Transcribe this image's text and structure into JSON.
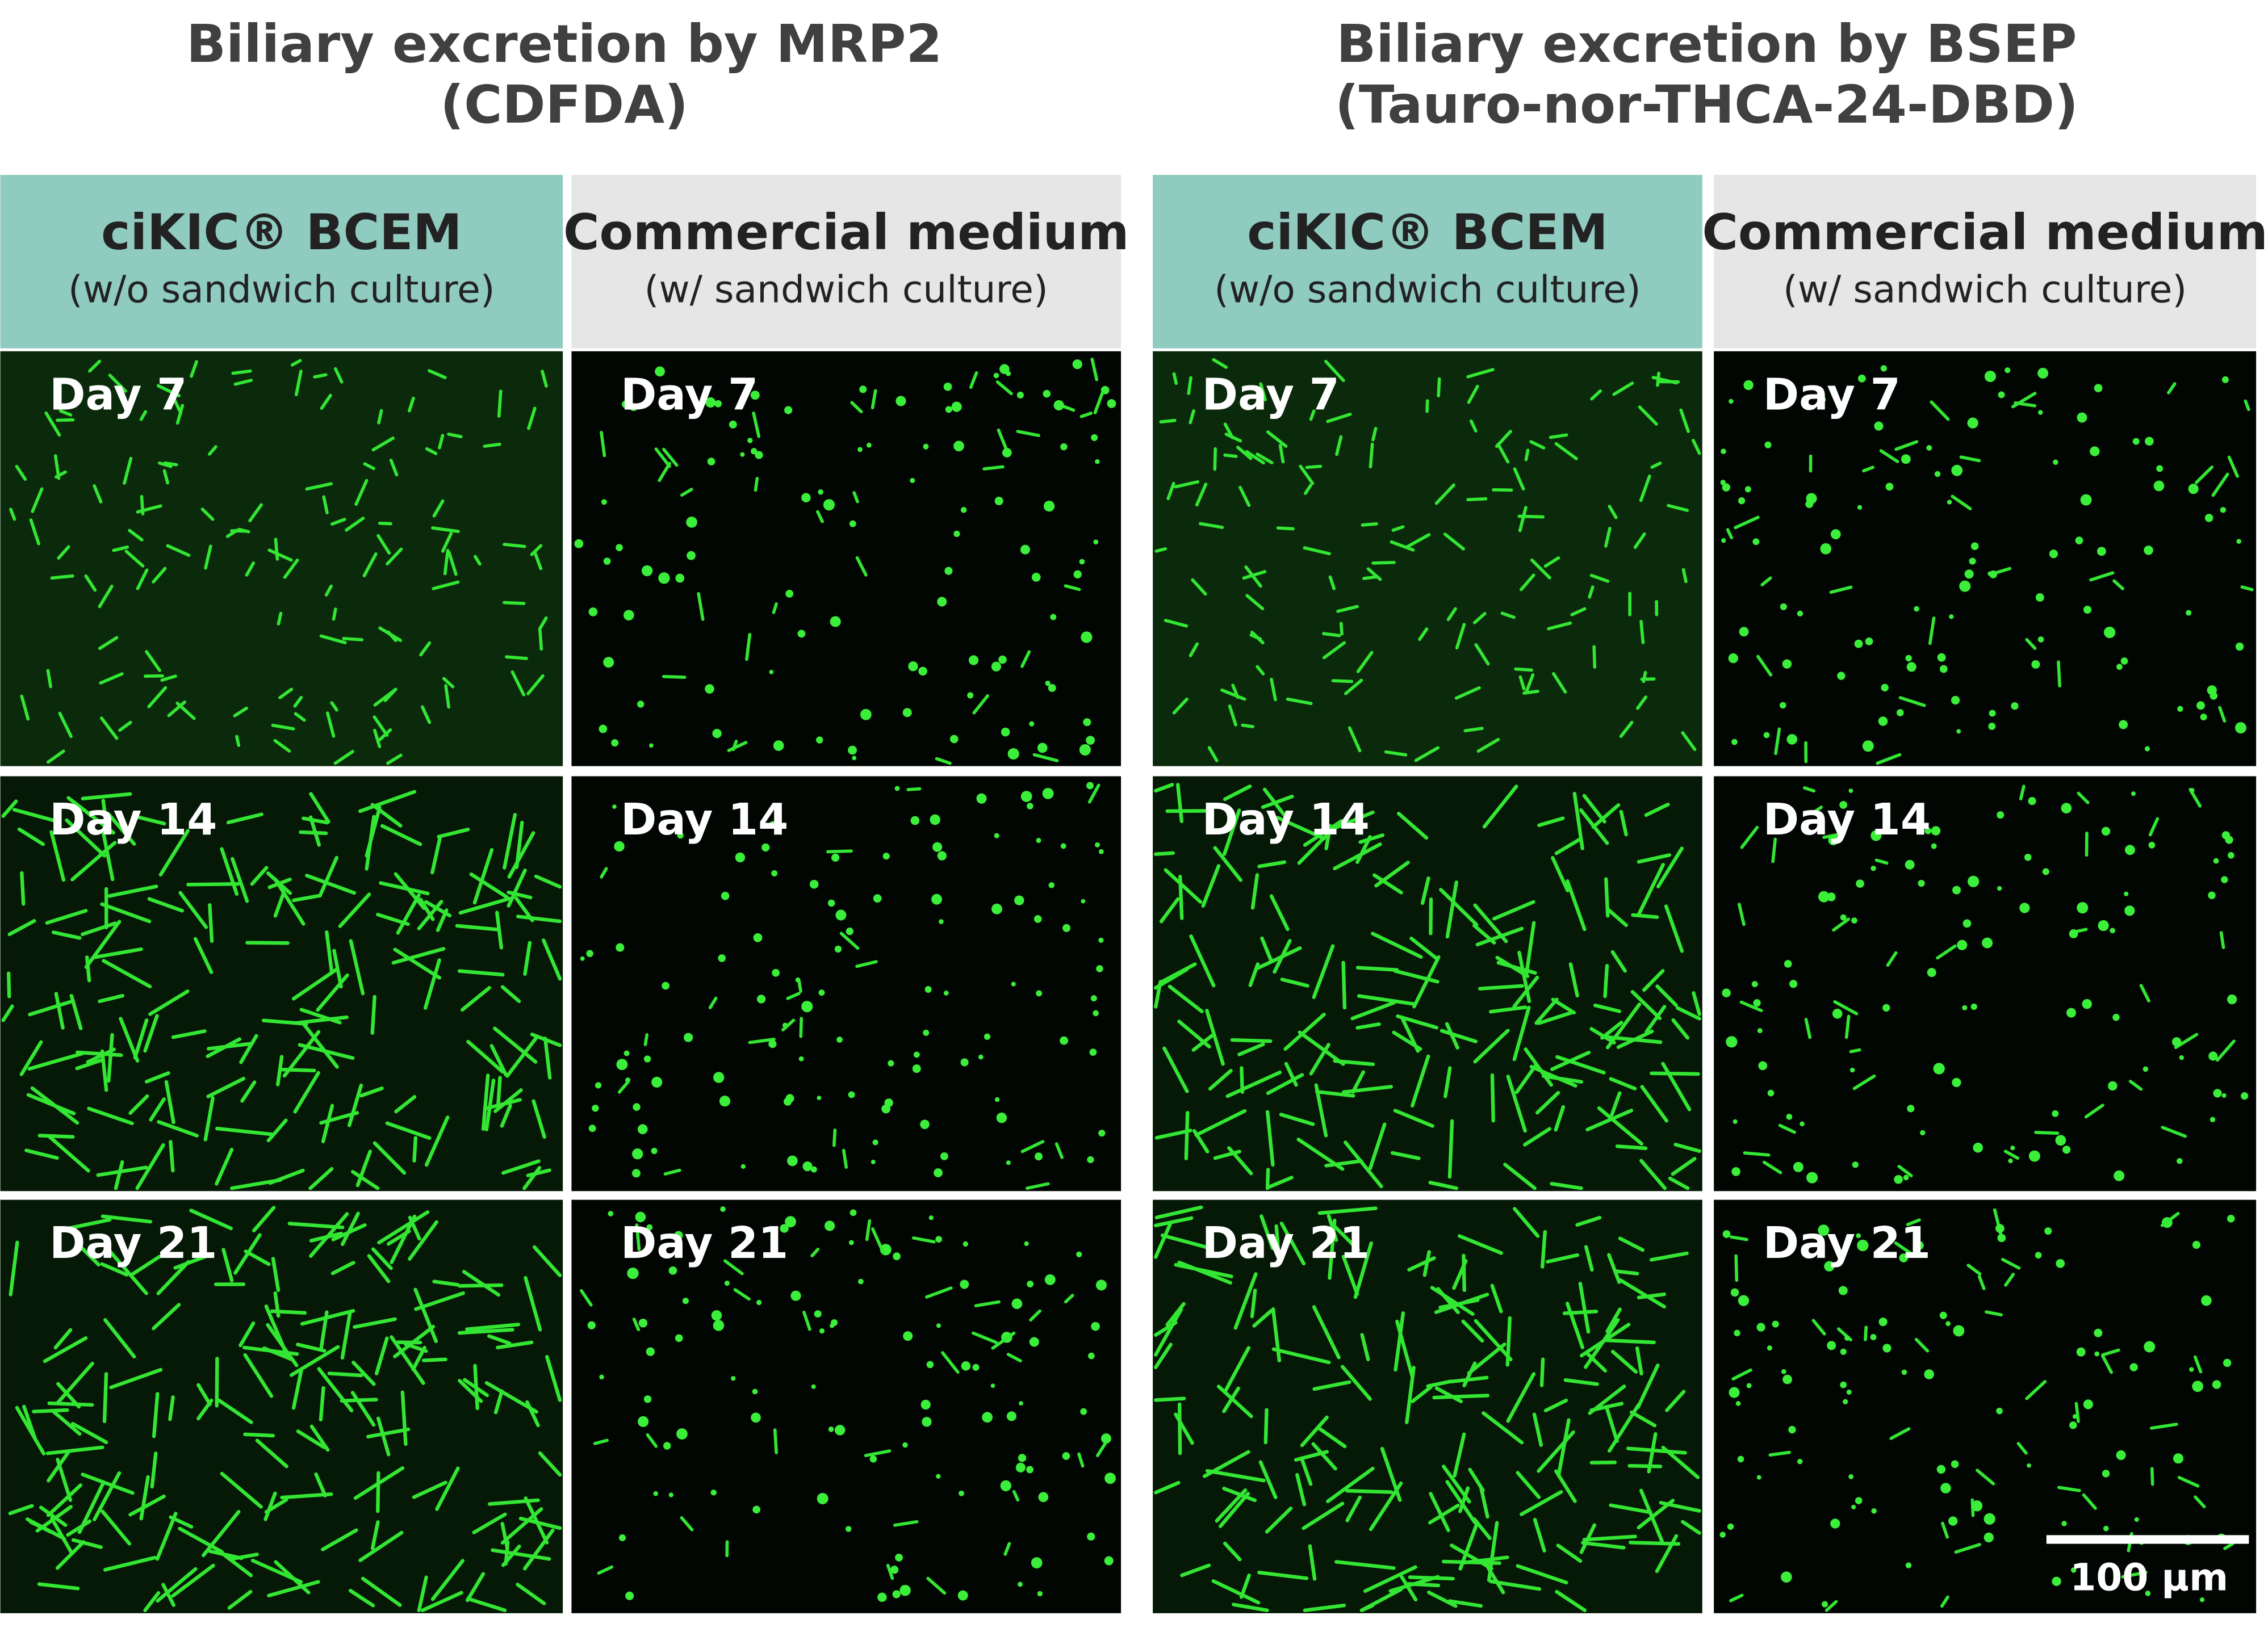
{
  "groups": [
    {
      "title": "Biliary excretion by MRP2",
      "subtitle": "(CDFDA)",
      "columns": [
        {
          "title": "ciKIC® BCEM",
          "subtitle": "(w/o sandwich culture)",
          "days": [
            "Day 7",
            "Day 14",
            "Day 21"
          ]
        },
        {
          "title": "Commercial medium",
          "subtitle": "(w/ sandwich culture)",
          "days": [
            "Day 7",
            "Day 14",
            "Day 21"
          ]
        }
      ]
    },
    {
      "title": "Biliary excretion by BSEP",
      "subtitle": "(Tauro-nor-THCA-24-DBD)",
      "columns": [
        {
          "title": "ciKIC® BCEM",
          "subtitle": "(w/o sandwich culture)",
          "days": [
            "Day 7",
            "Day 14",
            "Day 21"
          ]
        },
        {
          "title": "Commercial medium",
          "subtitle": "(w/ sandwich culture)",
          "days": [
            "Day 7",
            "Day 14",
            "Day 21"
          ]
        }
      ]
    }
  ],
  "scale_bar": "100 µm"
}
